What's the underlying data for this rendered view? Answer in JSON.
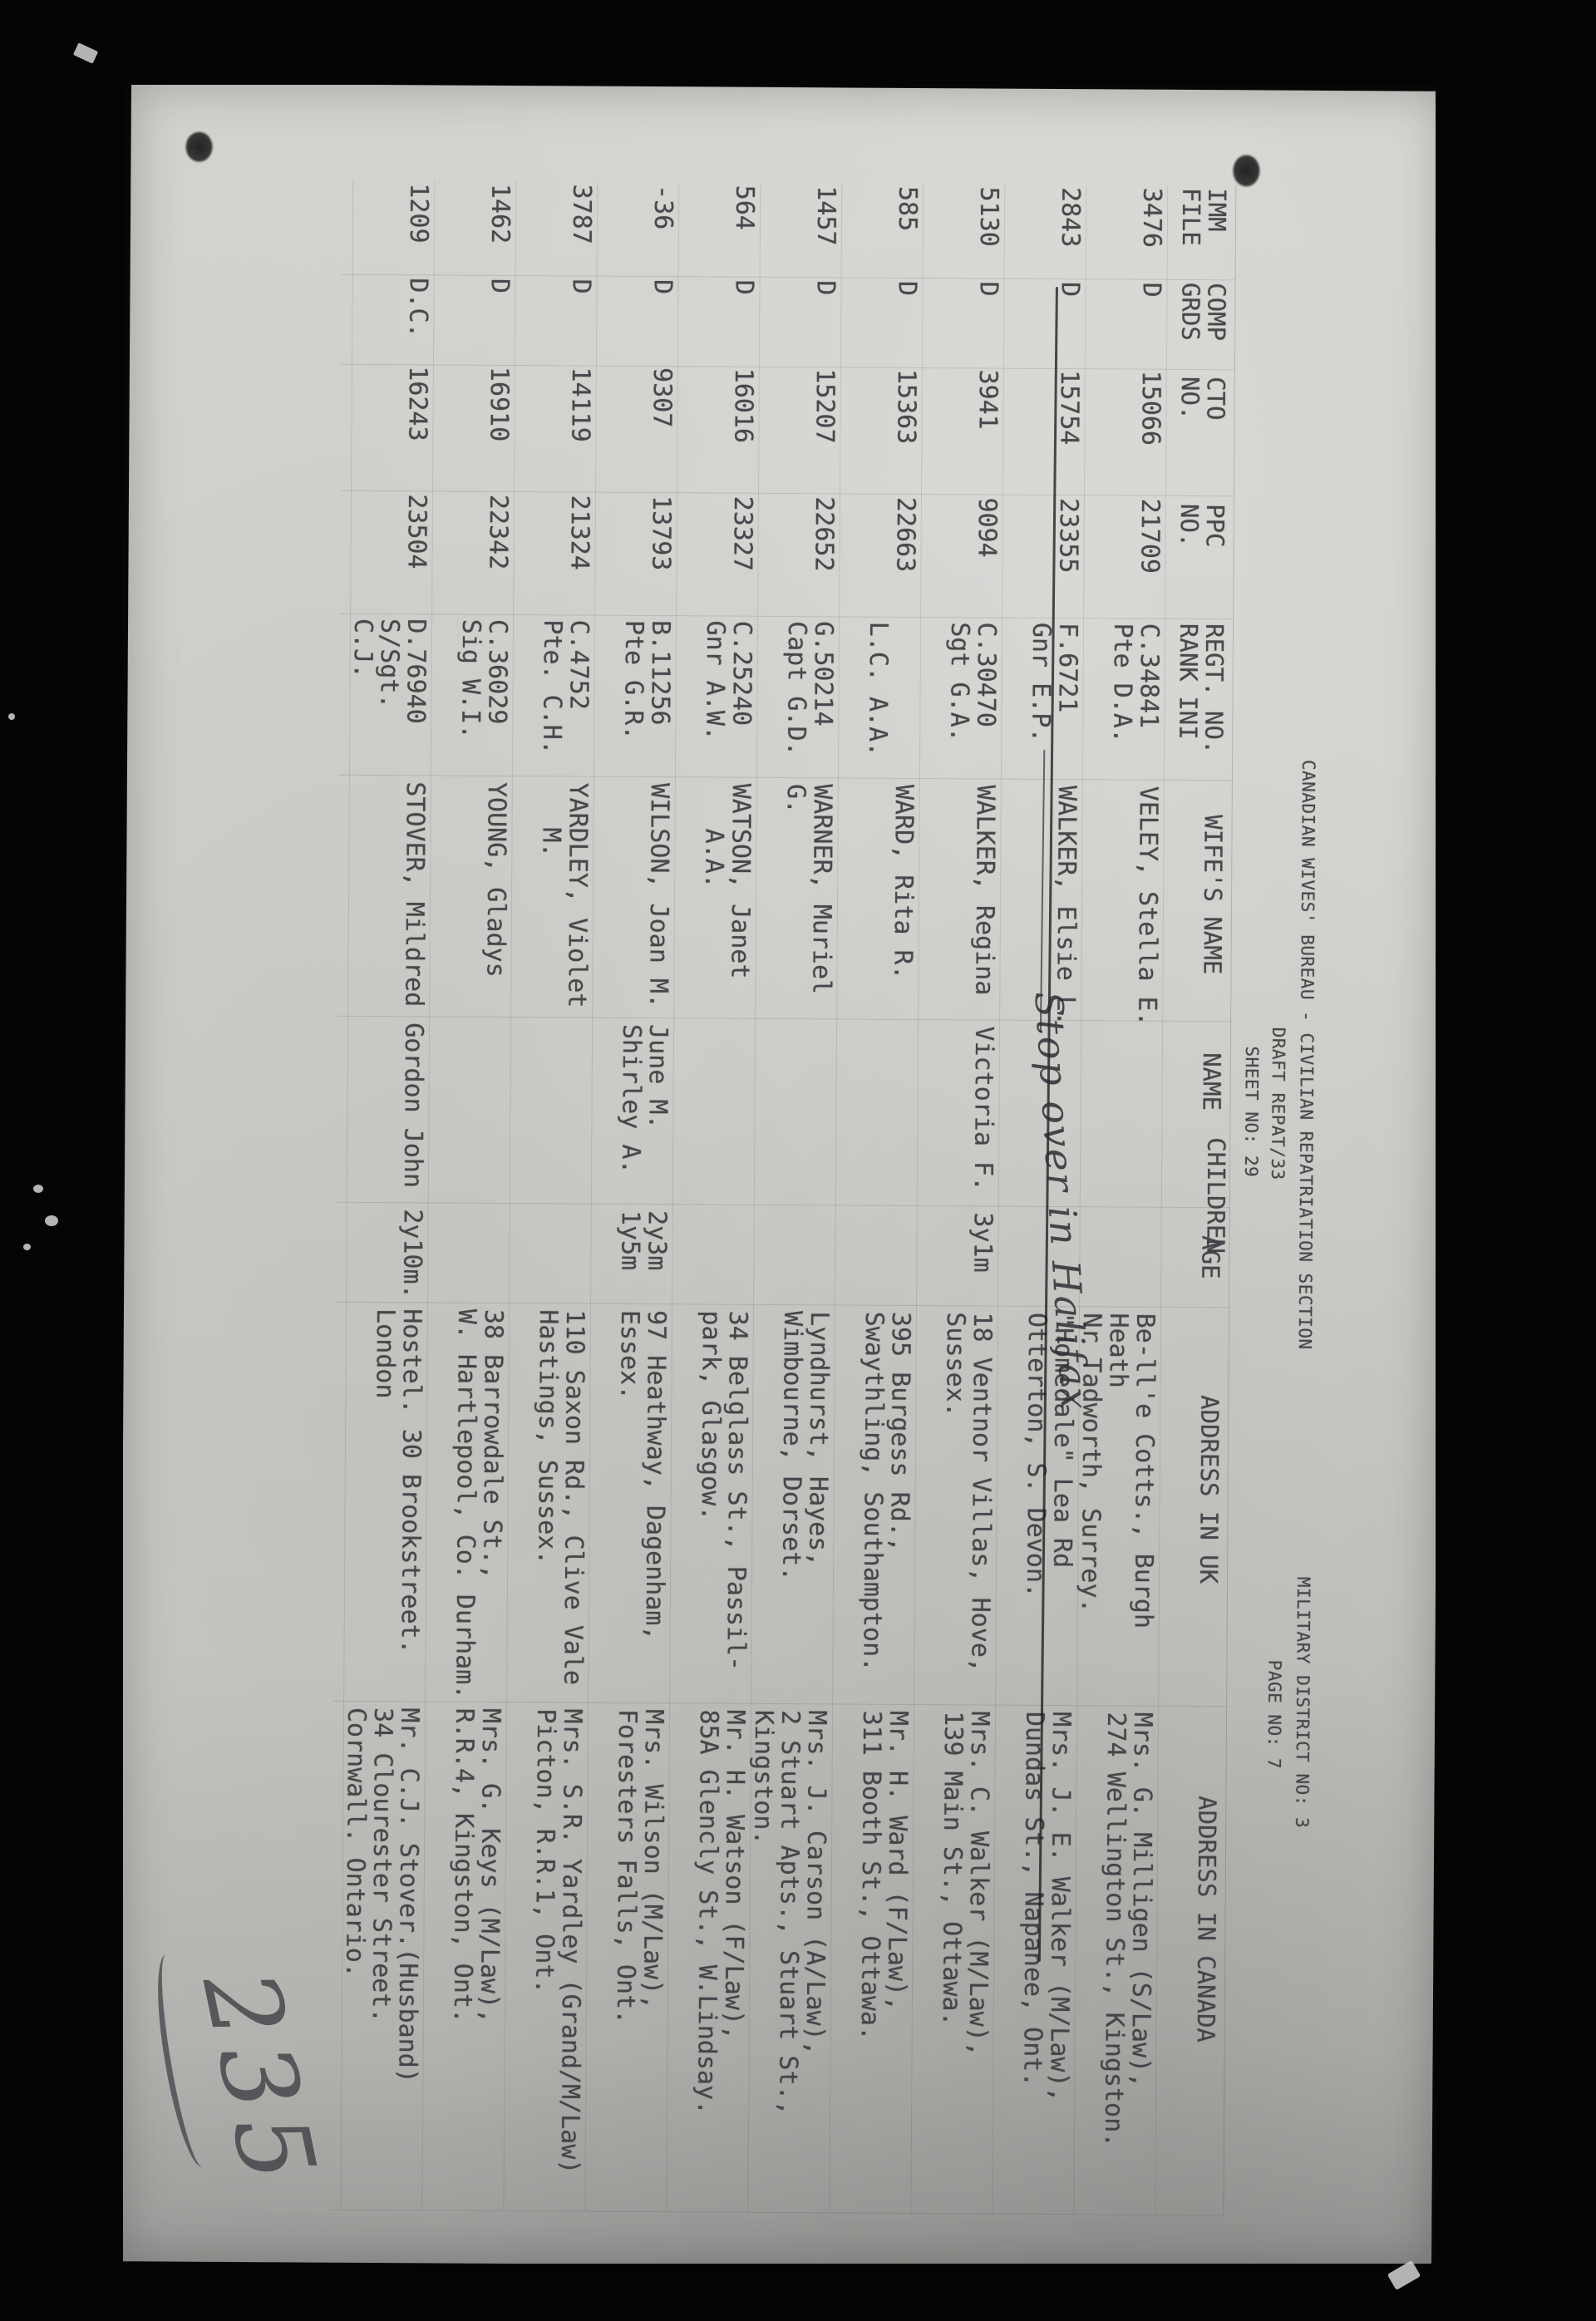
{
  "header": {
    "title": "CANADIAN WIVES' BUREAU - CIVILIAN REPATRIATION SECTION",
    "district": "MILITARY DISTRICT NO: 3",
    "draft": "DRAFT REPAT/33",
    "sheet_no": "SHEET NO: 29",
    "page_no": "PAGE NO: 7"
  },
  "table": {
    "columns": [
      {
        "id": "imm",
        "label": "IMM\nFILE"
      },
      {
        "id": "grds",
        "label": "COMP\nGRDS"
      },
      {
        "id": "cto",
        "label": "CTO\nNO."
      },
      {
        "id": "ppc",
        "label": "PPC\nNO."
      },
      {
        "id": "regt",
        "label": "REGT. NO.\nRANK INI"
      },
      {
        "id": "wife",
        "label": "WIFE'S NAME"
      },
      {
        "id": "name",
        "label": "NAME"
      },
      {
        "id": "children",
        "label": "CHILDREN"
      },
      {
        "id": "age",
        "label": "AGE"
      },
      {
        "id": "uk",
        "label": "ADDRESS IN UK"
      },
      {
        "id": "canada",
        "label": "ADDRESS IN CANADA"
      }
    ],
    "rows": [
      {
        "imm": "3476",
        "grds": "D",
        "cto": "15066",
        "ppc": "21709",
        "regt": "C.34841\nPte D.A.",
        "wife": "VELEY, Stella E.",
        "name": "",
        "age": "",
        "uk": "Be-ll'e Cotts., Burgh Heath\nNr Tadworth, Surrey.",
        "canada": "Mrs. G. Milligen (S/Law),\n274 Wellington St., Kingston."
      },
      {
        "imm": "2843",
        "grds": "D",
        "cto": "15754",
        "ppc": "23355",
        "regt": "F.6721\nGnr E.P.",
        "wife": "WALKER, Elsie L.",
        "name": "",
        "age": "",
        "uk": "\"Homedale\" Lea Rd\nOtterton, S. Devon.",
        "canada": "Mrs. J. E. Walker (M/Law),\nDundas St., Napanee, Ont."
      },
      {
        "imm": "5130",
        "grds": "D",
        "cto": "3941",
        "ppc": "9094",
        "regt": "C.30470\nSgt G.A.",
        "wife": "WALKER, Regina",
        "name": "Victoria F.",
        "age": "3y1m",
        "uk": "18 Ventnor Villas, Hove,\nSussex.",
        "canada": "Mrs. C. Walker (M/Law),\n139 Main St., Ottawa."
      },
      {
        "imm": "585",
        "grds": "D",
        "cto": "15363",
        "ppc": "22663",
        "regt": "\nL.C. A.A.",
        "wife": "WARD, Rita R.",
        "name": "",
        "age": "",
        "uk": "395 Burgess Rd.,\nSwaythling, Southampton.",
        "canada": "Mr. H. Ward (F/Law),\n311 Booth St., Ottawa."
      },
      {
        "imm": "1457",
        "grds": "D",
        "cto": "15207",
        "ppc": "22652",
        "regt": "G.50214\nCapt G.D.",
        "wife": "WARNER, Muriel G.",
        "name": "",
        "age": "",
        "uk": "Lyndhurst, Hayes,\nWimbourne, Dorset.",
        "canada": "Mrs. J. Carson (A/Law),\n2 Stuart Apts., Stuart St.,\nKingston."
      },
      {
        "imm": "564",
        "grds": "D",
        "cto": "16016",
        "ppc": "23327",
        "regt": "C.25240\nGnr A.W.",
        "wife": "WATSON, Janet\n   A.A.",
        "name": "",
        "age": "",
        "uk": "34 Belglass St., Passil-\npark, Glasgow.",
        "canada": "Mr. H. Watson (F/Law),\n85A Glencly St., W.Lindsay."
      },
      {
        "imm": "-36",
        "grds": "D",
        "cto": "9307",
        "ppc": "13793",
        "regt": "B.11256\nPte G.R.",
        "wife": "WILSON, Joan M.",
        "name": "June M.\nShirley A.",
        "age": "2y3m\n1y5m",
        "uk": "97 Heathway, Dagenham,\nEssex.",
        "canada": "Mrs. Wilson (M/Law),\nForesters Falls, Ont."
      },
      {
        "imm": "3787",
        "grds": "D",
        "cto": "14119",
        "ppc": "21324",
        "regt": "C.4752\nPte. C.H.",
        "wife": "YARDLEY, Violet\n   M.",
        "name": "",
        "age": "",
        "uk": "110 Saxon Rd., Clive Vale\nHastings, Sussex.",
        "canada": "Mrs. S.R. Yardley (Grand/M/Law)\nPicton, R.R.1, Ont."
      },
      {
        "imm": "1462",
        "grds": "D",
        "cto": "16910",
        "ppc": "22342",
        "regt": "C.36029\nSig W.I.",
        "wife": "YOUNG, Gladys",
        "name": "",
        "age": "",
        "uk": "38 Barrowdale St.,\nW. Hartlepool, Co. Durham.",
        "canada": "Mrs. G. Keys (M/Law),\nR.R.4, Kingston, Ont."
      },
      {
        "imm": "1209",
        "grds": "D.C.",
        "cto": "16243",
        "ppc": "23504",
        "regt": "D.76940\nS/Sgt. C.J.",
        "wife": "STOVER, Mildred",
        "name": "Gordon John",
        "age": "2y10m.",
        "uk": "Hostel. 30 Brookstreet. London",
        "canada": "Mr. C.J. Stover.(Husband)\n34 Clourester Street.\nCornwall. Ontario."
      }
    ]
  },
  "annotations": {
    "struck_row": 2,
    "row2_note": "Stop over in Halifax",
    "handwritten_page_number": "235"
  }
}
